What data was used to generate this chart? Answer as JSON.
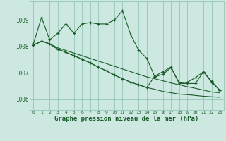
{
  "bg_color": "#cce8e0",
  "plot_bg_color": "#cce8e0",
  "grid_color": "#88c0b0",
  "line_color": "#1a5c2a",
  "xlabel": "Graphe pression niveau de la mer (hPa)",
  "ylim": [
    1005.6,
    1009.7
  ],
  "xlim": [
    -0.5,
    23.5
  ],
  "yticks": [
    1006,
    1007,
    1008,
    1009
  ],
  "xticks": [
    0,
    1,
    2,
    3,
    4,
    5,
    6,
    7,
    8,
    9,
    10,
    11,
    12,
    13,
    14,
    15,
    16,
    17,
    18,
    19,
    20,
    21,
    22,
    23
  ],
  "series1": [
    1008.1,
    1009.1,
    1008.25,
    1008.5,
    1008.85,
    1008.5,
    1008.85,
    1008.9,
    1008.85,
    1008.85,
    1009.0,
    1009.35,
    1008.45,
    1007.85,
    1007.55,
    1006.85,
    1006.95,
    1007.2,
    1006.6,
    1006.6,
    1006.6,
    1007.05,
    1006.65,
    1006.35
  ],
  "series2": [
    1008.05,
    1008.2,
    1008.1,
    1007.95,
    1007.85,
    1007.75,
    1007.65,
    1007.55,
    1007.45,
    1007.35,
    1007.25,
    1007.15,
    1007.05,
    1006.95,
    1006.85,
    1006.78,
    1006.7,
    1006.62,
    1006.55,
    1006.48,
    1006.42,
    1006.35,
    1006.28,
    1006.25
  ],
  "series3": [
    1008.05,
    1008.2,
    1008.1,
    1007.9,
    1007.78,
    1007.65,
    1007.52,
    1007.38,
    1007.22,
    1007.08,
    1006.92,
    1006.78,
    1006.65,
    1006.55,
    1006.45,
    1006.38,
    1006.3,
    1006.25,
    1006.2,
    1006.18,
    1006.15,
    1006.12,
    1006.1,
    1006.08
  ],
  "series4": [
    1008.05,
    1008.2,
    1008.1,
    1007.9,
    1007.78,
    1007.65,
    1007.52,
    1007.38,
    1007.22,
    1007.08,
    1006.92,
    1006.78,
    1006.65,
    1006.55,
    1006.45,
    1006.88,
    1007.05,
    1007.22,
    1006.62,
    1006.65,
    1006.82,
    1007.05,
    1006.68,
    1006.35
  ]
}
